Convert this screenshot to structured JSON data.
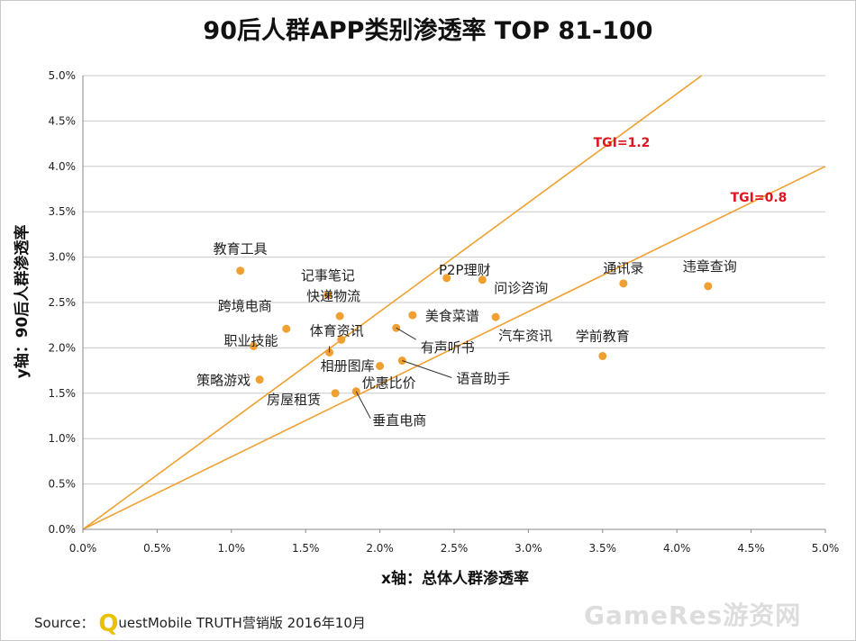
{
  "chart_data": {
    "type": "scatter",
    "title": "90后人群APP类别渗透率 TOP 81-100",
    "xlabel": "x轴：总体人群渗透率",
    "ylabel": "y轴：90后人群渗透率",
    "xlim": [
      0,
      5.0
    ],
    "ylim": [
      0,
      5.0
    ],
    "x_ticks": [
      "0.0%",
      "0.5%",
      "1.0%",
      "1.5%",
      "2.0%",
      "2.5%",
      "3.0%",
      "3.5%",
      "4.0%",
      "4.5%",
      "5.0%"
    ],
    "y_ticks": [
      "0.0%",
      "0.5%",
      "1.0%",
      "1.5%",
      "2.0%",
      "2.5%",
      "3.0%",
      "3.5%",
      "4.0%",
      "4.5%",
      "5.0%"
    ],
    "grid": "horizontal",
    "point_color": "#f0a030",
    "line_color": "#f0a030",
    "reference_lines": [
      {
        "label": "TGI=1.2",
        "slope": 1.2
      },
      {
        "label": "TGI=0.8",
        "slope": 0.8
      }
    ],
    "points": [
      {
        "name": "教育工具",
        "x": 1.06,
        "y": 2.85
      },
      {
        "name": "记事笔记",
        "x": 1.65,
        "y": 2.58
      },
      {
        "name": "快递物流",
        "x": 1.73,
        "y": 2.35
      },
      {
        "name": "跨境电商",
        "x": 1.37,
        "y": 2.21
      },
      {
        "name": "体育资讯",
        "x": 1.74,
        "y": 2.09
      },
      {
        "name": "职业技能",
        "x": 1.15,
        "y": 2.02
      },
      {
        "name": "相册图库",
        "x": 1.66,
        "y": 1.95
      },
      {
        "name": "策略游戏",
        "x": 1.19,
        "y": 1.65
      },
      {
        "name": "房屋租赁",
        "x": 1.7,
        "y": 1.5
      },
      {
        "name": "优惠比价",
        "x": 2.0,
        "y": 1.8
      },
      {
        "name": "垂直电商",
        "x": 1.84,
        "y": 1.52
      },
      {
        "name": "语音助手",
        "x": 2.15,
        "y": 1.86
      },
      {
        "name": "有声听书",
        "x": 2.11,
        "y": 2.22
      },
      {
        "name": "美食菜谱",
        "x": 2.22,
        "y": 2.36
      },
      {
        "name": "P2P理财",
        "x": 2.45,
        "y": 2.77
      },
      {
        "name": "问诊咨询",
        "x": 2.69,
        "y": 2.75
      },
      {
        "name": "汽车资讯",
        "x": 2.78,
        "y": 2.34
      },
      {
        "name": "学前教育",
        "x": 3.5,
        "y": 1.91
      },
      {
        "name": "通讯录",
        "x": 3.64,
        "y": 2.71
      },
      {
        "name": "违章查询",
        "x": 4.21,
        "y": 2.68
      }
    ]
  },
  "source": {
    "prefix": "Source：",
    "logo_letter": "Q",
    "text": "uestMobile TRUTH营销版 2016年10月"
  },
  "watermark": "GameRes游资网"
}
